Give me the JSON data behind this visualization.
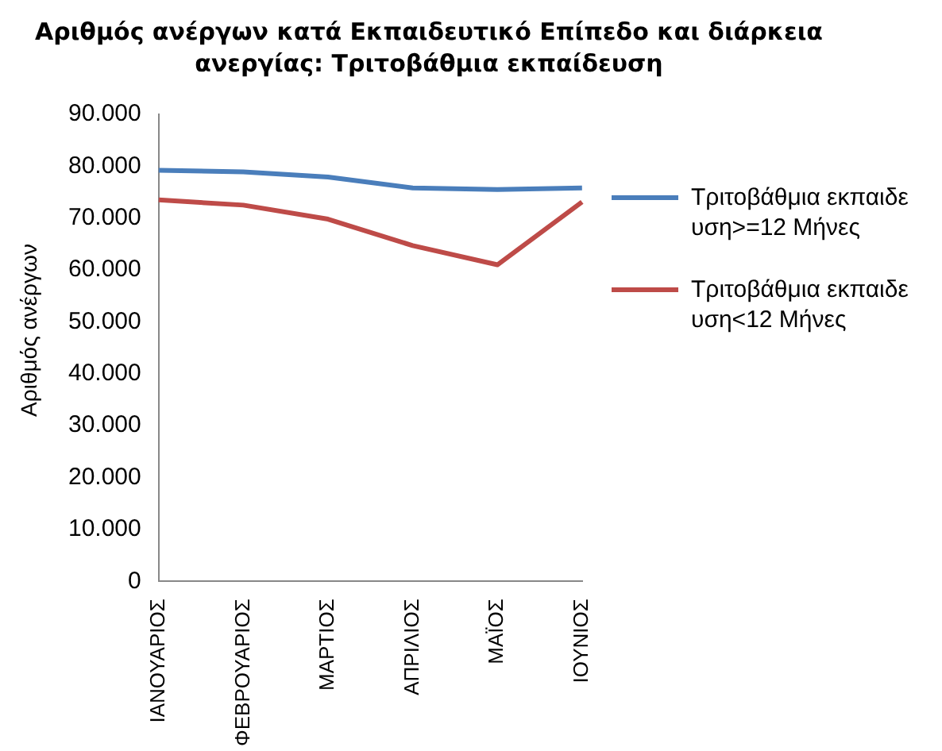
{
  "chart_data": {
    "type": "line",
    "title": "Αριθμός ανέργων κατά Εκπαιδευτικό Επίπεδο και διάρκεια ανεργίας: Τριτοβάθμια εκπαίδευση",
    "ylabel": "Αριθμός ανέργων",
    "categories": [
      "ΙΑΝΟΥΑΡΙΟΣ",
      "ΦΕΒΡΟΥΑΡΙΟΣ",
      "ΜΑΡΤΙΟΣ",
      "ΑΠΡΙΛΙΟΣ",
      "ΜΑΪΟΣ",
      "ΙΟΥΝΙΟΣ"
    ],
    "series": [
      {
        "name": "Τριτοβάθμια εκπαιδευση>=12 Μήνες",
        "color": "#4a7ebb",
        "values": [
          79200,
          78900,
          77900,
          75800,
          75500,
          75800
        ]
      },
      {
        "name": "Τριτοβάθμια εκπαιδευση<12 Μήνες",
        "color": "#be4b48",
        "values": [
          73500,
          72500,
          69800,
          64700,
          61000,
          73100
        ]
      }
    ],
    "ylim": [
      0,
      90000
    ],
    "yticks": [
      {
        "value": 0,
        "label": "0"
      },
      {
        "value": 10000,
        "label": "10.000"
      },
      {
        "value": 20000,
        "label": "20.000"
      },
      {
        "value": 30000,
        "label": "30.000"
      },
      {
        "value": 40000,
        "label": "40.000"
      },
      {
        "value": 50000,
        "label": "50.000"
      },
      {
        "value": 60000,
        "label": "60.000"
      },
      {
        "value": 70000,
        "label": "70.000"
      },
      {
        "value": 80000,
        "label": "80.000"
      },
      {
        "value": 90000,
        "label": "90.000"
      }
    ],
    "grid": false,
    "legend": "right",
    "marker": "none",
    "line_style": "solid"
  }
}
